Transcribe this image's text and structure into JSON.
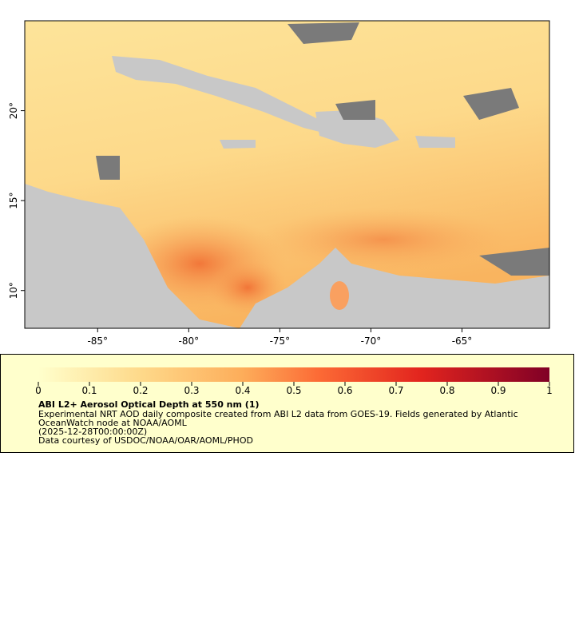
{
  "map": {
    "xlim": [
      -89,
      -60.2
    ],
    "ylim": [
      7.9,
      25
    ],
    "xticks": [
      {
        "value": -85,
        "label": "-85°"
      },
      {
        "value": -80,
        "label": "-80°"
      },
      {
        "value": -75,
        "label": "-75°"
      },
      {
        "value": -70,
        "label": "-70°"
      },
      {
        "value": -65,
        "label": "-65°"
      }
    ],
    "yticks": [
      {
        "value": 10,
        "label": "10°"
      },
      {
        "value": 15,
        "label": "15°"
      },
      {
        "value": 20,
        "label": "20°"
      }
    ]
  },
  "colorbar": {
    "lim": [
      0,
      1
    ],
    "ticks": [
      0,
      0.1,
      0.2,
      0.3,
      0.4,
      0.5,
      0.6,
      0.7,
      0.8,
      0.9,
      1
    ]
  },
  "legend": {
    "title": "ABI L2+ Aerosol Optical Depth at 550 nm (1)",
    "lines": [
      "Experimental NRT AOD daily composite created from ABI L2 data from GOES-19. Fields generated by Atlantic",
      "OceanWatch node at NOAA/AOML",
      "(2025-12-28T00:00:00Z)",
      "Data courtesy of USDOC/NOAA/OAR/AOML/PHOD"
    ]
  }
}
